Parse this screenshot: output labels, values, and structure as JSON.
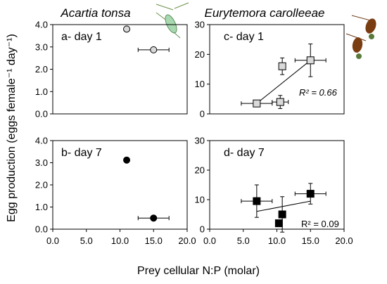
{
  "figure": {
    "species_left": "Acartia tonsa",
    "species_right": "Eurytemora carolleeae",
    "ylabel": "Egg production (eggs female⁻¹ day⁻¹)",
    "xlabel": "Prey cellular N:P (molar)"
  },
  "chart_data": [
    {
      "type": "scatter",
      "panel_label": "a- day 1",
      "xlim": [
        0,
        20
      ],
      "ylim": [
        0,
        4
      ],
      "xticks": [
        "0.0",
        "5.0",
        "10.0",
        "15.0",
        "20.0"
      ],
      "yticks": [
        "0.0",
        "1.0",
        "2.0",
        "3.0",
        "4.0"
      ],
      "marker": "circle",
      "fill": "#d9d9d9",
      "points": [
        {
          "x": 11.0,
          "y": 3.8,
          "xerr": 0.3,
          "yerr": 0.08
        },
        {
          "x": 15.0,
          "y": 2.87,
          "xerr": 2.3,
          "yerr": 0.1
        }
      ]
    },
    {
      "type": "scatter",
      "panel_label": "b- day 7",
      "xlim": [
        0,
        20
      ],
      "ylim": [
        0,
        4
      ],
      "xticks": [
        "0.0",
        "5.0",
        "10.0",
        "15.0",
        "20.0"
      ],
      "yticks": [
        "0.0",
        "1.0",
        "2.0",
        "3.0",
        "4.0"
      ],
      "marker": "circle",
      "fill": "#000000",
      "points": [
        {
          "x": 11.0,
          "y": 3.12,
          "xerr": 0.3,
          "yerr": 0.05
        },
        {
          "x": 15.0,
          "y": 0.5,
          "xerr": 2.3,
          "yerr": 0.05
        }
      ]
    },
    {
      "type": "scatter",
      "panel_label": "c- day 1",
      "xlim": [
        0,
        20
      ],
      "ylim": [
        0,
        30
      ],
      "xticks": [
        "0.0",
        "5.0",
        "10.0",
        "15.0",
        "20.0"
      ],
      "yticks": [
        "0",
        "10",
        "20",
        "30"
      ],
      "marker": "square",
      "fill": "#d9d9d9",
      "trendline": true,
      "trend_x": [
        7.0,
        15.0
      ],
      "trend_y": [
        3.5,
        18.0
      ],
      "r2": "R² = 0.66",
      "points": [
        {
          "x": 7.0,
          "y": 3.5,
          "xerr": 2.3,
          "yerr": 1.0
        },
        {
          "x": 10.5,
          "y": 4.0,
          "xerr": 1.2,
          "yerr": 2.2
        },
        {
          "x": 10.8,
          "y": 16.0,
          "xerr": 0.4,
          "yerr": 2.8
        },
        {
          "x": 15.0,
          "y": 18.0,
          "xerr": 2.3,
          "yerr": 5.5
        }
      ]
    },
    {
      "type": "scatter",
      "panel_label": "d- day 7",
      "xlim": [
        0,
        20
      ],
      "ylim": [
        0,
        30
      ],
      "xticks": [
        "0.0",
        "5.0",
        "10.0",
        "15.0",
        "20.0"
      ],
      "yticks": [
        "0",
        "10",
        "20",
        "30"
      ],
      "marker": "square",
      "fill": "#000000",
      "trendline": true,
      "trend_x": [
        7.0,
        15.0
      ],
      "trend_y": [
        6.0,
        9.5
      ],
      "r2": "R² = 0.09",
      "points": [
        {
          "x": 7.0,
          "y": 9.5,
          "xerr": 2.3,
          "yerr": 5.5
        },
        {
          "x": 10.3,
          "y": 2.0,
          "xerr": 0.3,
          "yerr": 1.0
        },
        {
          "x": 10.8,
          "y": 5.0,
          "xerr": 0.5,
          "yerr": 6.0
        },
        {
          "x": 15.0,
          "y": 12.0,
          "xerr": 2.3,
          "yerr": 3.5
        }
      ]
    }
  ]
}
